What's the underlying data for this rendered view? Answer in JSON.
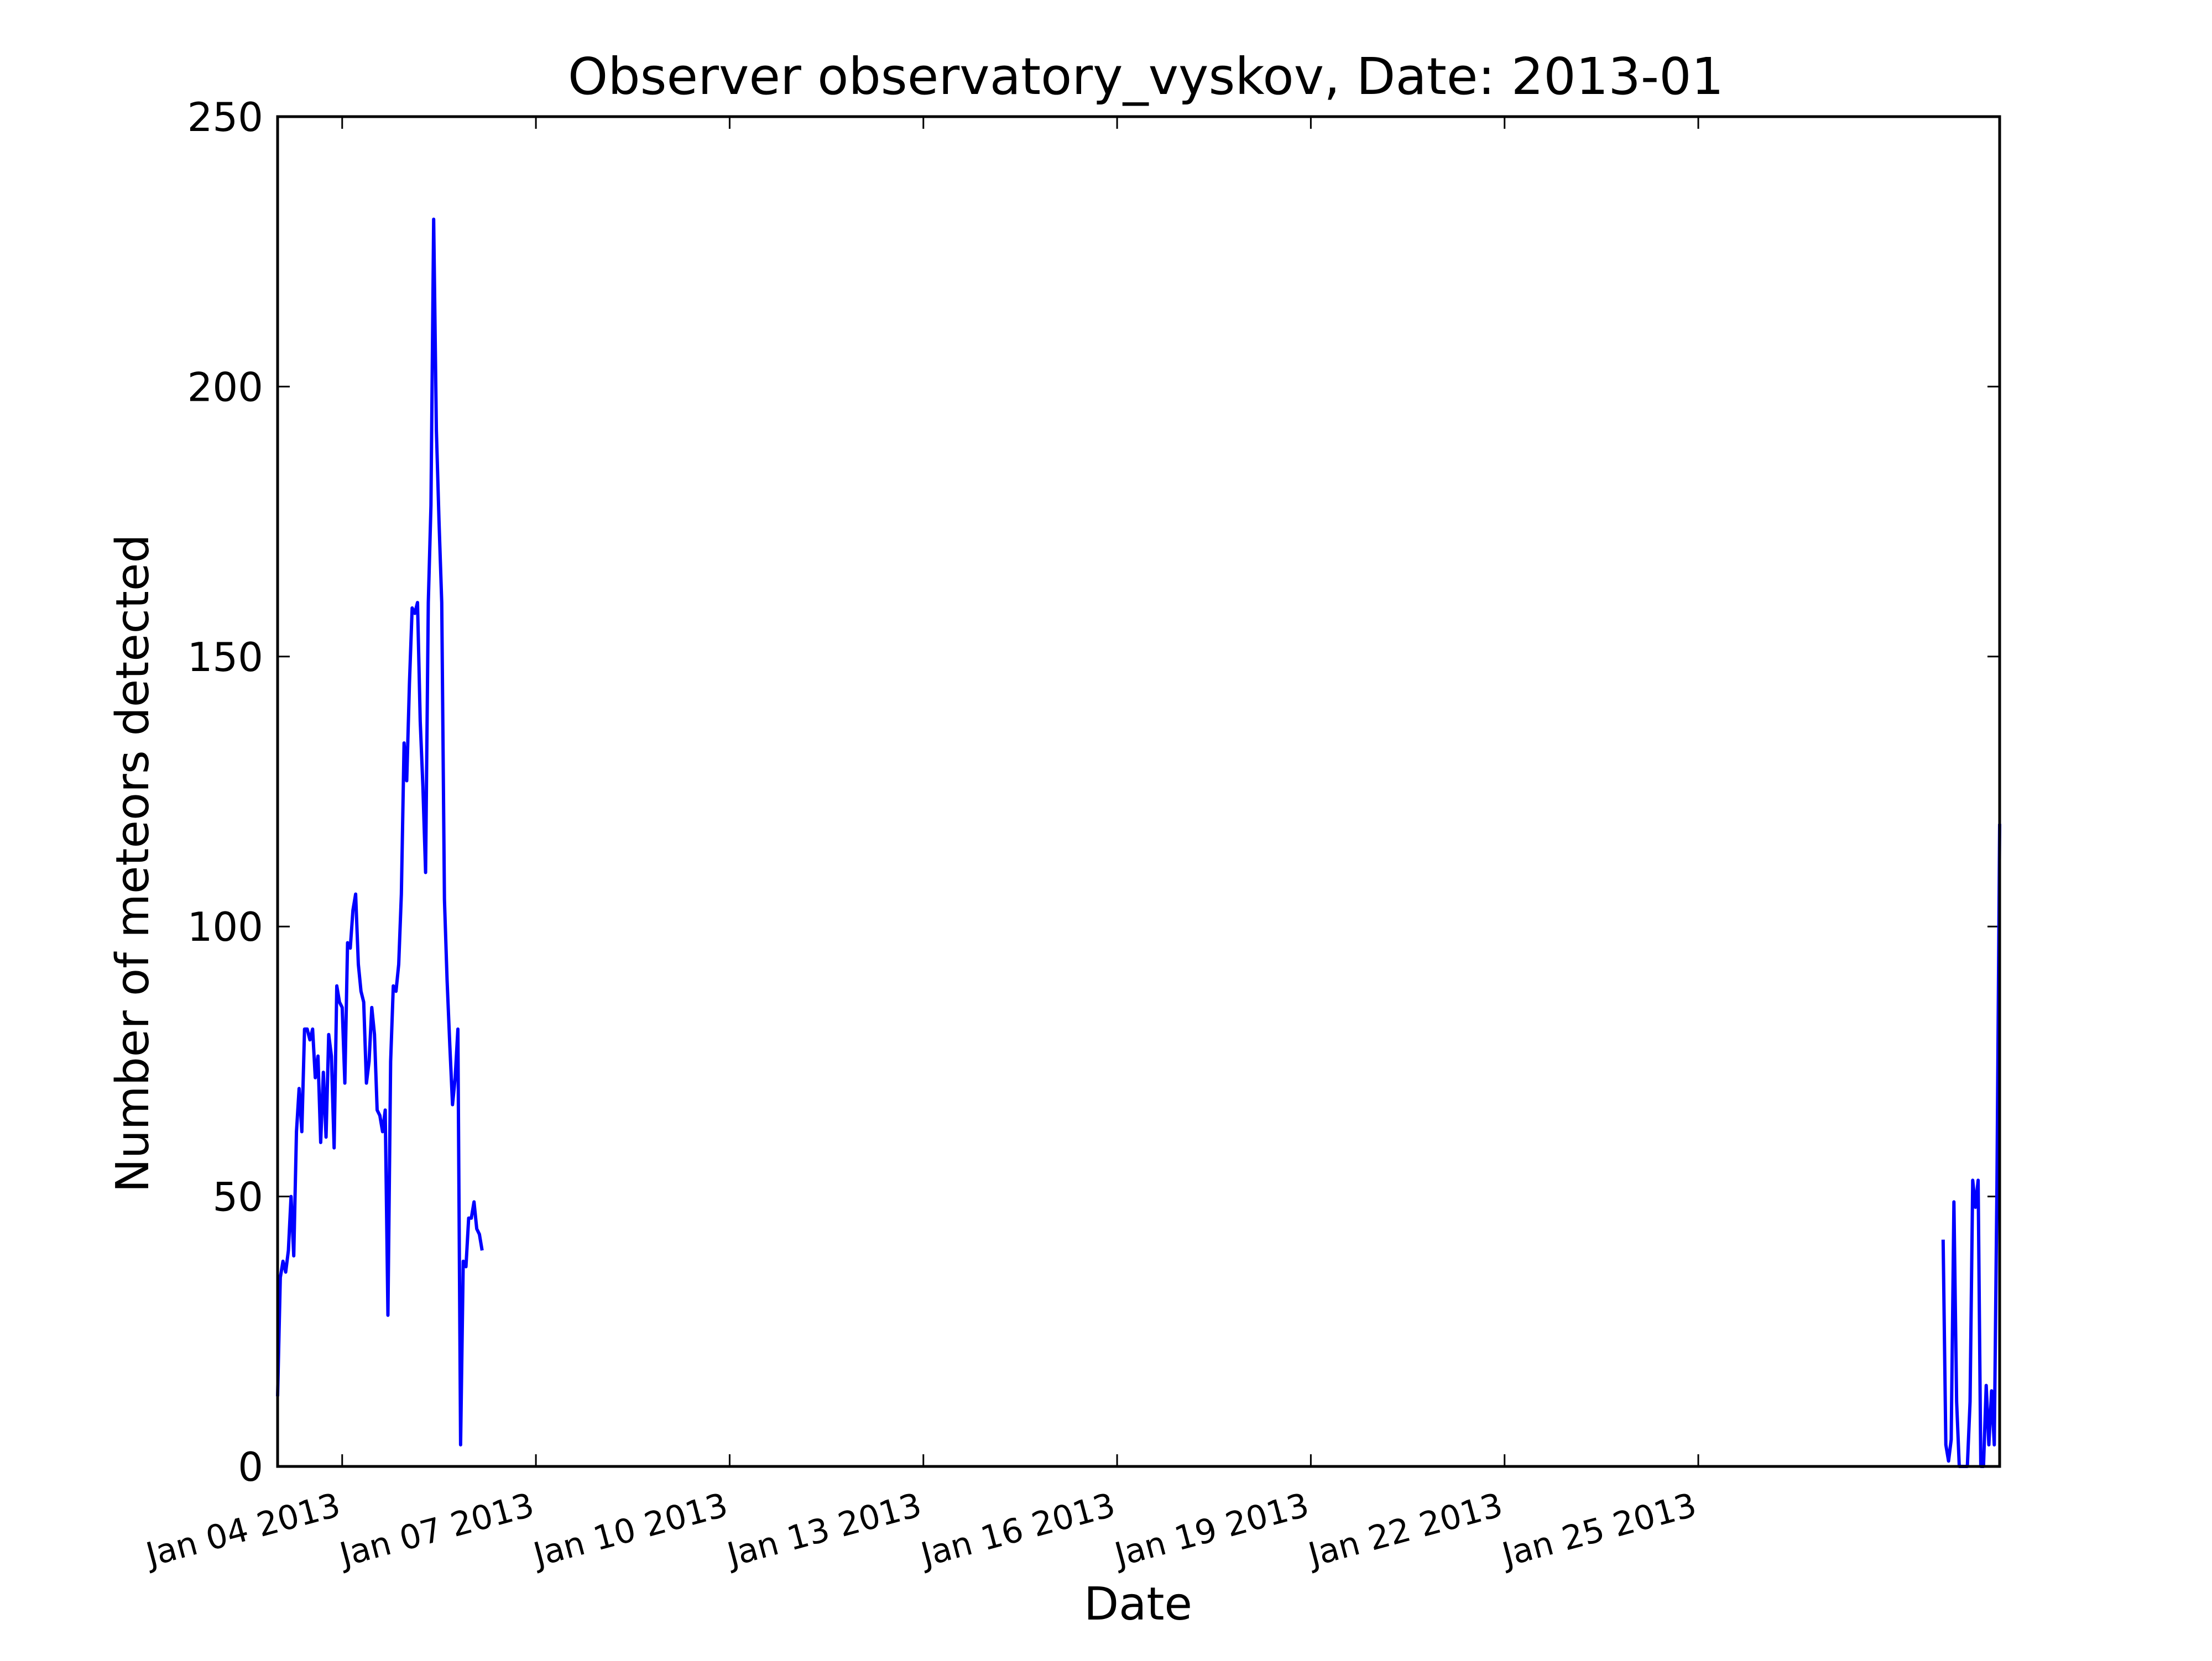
{
  "chart_data": {
    "type": "line",
    "title": "Observer observatory_vyskov, Date: 2013-01",
    "xlabel": "Date",
    "ylabel": "Number of meteors detected",
    "ylim": [
      0,
      250
    ],
    "xlim": [
      "2013-01-03T00:00",
      "2013-01-29T16:00"
    ],
    "yticks": [
      0,
      50,
      100,
      150,
      200,
      250
    ],
    "ytick_labels": [
      "0",
      "50",
      "100",
      "150",
      "200",
      "250"
    ],
    "xticks": [
      "2013-01-04T00:00",
      "2013-01-07T00:00",
      "2013-01-10T00:00",
      "2013-01-13T00:00",
      "2013-01-16T00:00",
      "2013-01-19T00:00",
      "2013-01-22T00:00",
      "2013-01-25T00:00"
    ],
    "xtick_labels": [
      "Jan 04 2013",
      "Jan 07 2013",
      "Jan 10 2013",
      "Jan 13 2013",
      "Jan 16 2013",
      "Jan 19 2013",
      "Jan 22 2013",
      "Jan 25 2013"
    ],
    "grid": false,
    "line_color": "#0000ff",
    "series": [
      {
        "segments": [
          [
            [
              "2013-01-03T00:00",
              13
            ],
            [
              "2013-01-03T01:00",
              35
            ],
            [
              "2013-01-03T02:00",
              38
            ],
            [
              "2013-01-03T03:00",
              36
            ],
            [
              "2013-01-03T04:00",
              40
            ],
            [
              "2013-01-03T05:00",
              50
            ],
            [
              "2013-01-03T06:00",
              39
            ],
            [
              "2013-01-03T07:00",
              62
            ],
            [
              "2013-01-03T08:00",
              70
            ],
            [
              "2013-01-03T09:00",
              62
            ],
            [
              "2013-01-03T10:00",
              81
            ],
            [
              "2013-01-03T11:00",
              81
            ],
            [
              "2013-01-03T12:00",
              79
            ],
            [
              "2013-01-03T13:00",
              81
            ],
            [
              "2013-01-03T14:00",
              72
            ],
            [
              "2013-01-03T15:00",
              76
            ],
            [
              "2013-01-03T16:00",
              60
            ],
            [
              "2013-01-03T17:00",
              73
            ],
            [
              "2013-01-03T18:00",
              61
            ],
            [
              "2013-01-03T19:00",
              80
            ],
            [
              "2013-01-03T20:00",
              76
            ],
            [
              "2013-01-03T21:00",
              59
            ],
            [
              "2013-01-03T22:00",
              89
            ],
            [
              "2013-01-03T23:00",
              86
            ],
            [
              "2013-01-04T00:00",
              85
            ],
            [
              "2013-01-04T01:00",
              71
            ],
            [
              "2013-01-04T02:00",
              97
            ],
            [
              "2013-01-04T03:00",
              96
            ],
            [
              "2013-01-04T04:00",
              103
            ],
            [
              "2013-01-04T05:00",
              106
            ],
            [
              "2013-01-04T06:00",
              93
            ],
            [
              "2013-01-04T07:00",
              88
            ],
            [
              "2013-01-04T08:00",
              86
            ],
            [
              "2013-01-04T09:00",
              71
            ],
            [
              "2013-01-04T10:00",
              75
            ],
            [
              "2013-01-04T11:00",
              85
            ],
            [
              "2013-01-04T12:00",
              80
            ],
            [
              "2013-01-04T13:00",
              66
            ],
            [
              "2013-01-04T14:00",
              65
            ],
            [
              "2013-01-04T15:00",
              62
            ],
            [
              "2013-01-04T16:00",
              66
            ],
            [
              "2013-01-04T17:00",
              28
            ],
            [
              "2013-01-04T18:00",
              75
            ],
            [
              "2013-01-04T19:00",
              89
            ],
            [
              "2013-01-04T20:00",
              88
            ],
            [
              "2013-01-04T21:00",
              93
            ],
            [
              "2013-01-04T22:00",
              106
            ],
            [
              "2013-01-04T23:00",
              134
            ],
            [
              "2013-01-05T00:00",
              127
            ],
            [
              "2013-01-05T01:00",
              145
            ],
            [
              "2013-01-05T02:00",
              159
            ],
            [
              "2013-01-05T03:00",
              158
            ],
            [
              "2013-01-05T04:00",
              160
            ],
            [
              "2013-01-05T05:00",
              138
            ],
            [
              "2013-01-05T06:00",
              126
            ],
            [
              "2013-01-05T07:00",
              110
            ],
            [
              "2013-01-05T08:00",
              160
            ],
            [
              "2013-01-05T09:00",
              178
            ],
            [
              "2013-01-05T10:00",
              231
            ],
            [
              "2013-01-05T11:00",
              192
            ],
            [
              "2013-01-05T12:00",
              175
            ],
            [
              "2013-01-05T13:00",
              160
            ],
            [
              "2013-01-05T14:00",
              105
            ],
            [
              "2013-01-05T15:00",
              90
            ],
            [
              "2013-01-05T16:00",
              78
            ],
            [
              "2013-01-05T17:00",
              67
            ],
            [
              "2013-01-05T18:00",
              72
            ],
            [
              "2013-01-05T19:00",
              81
            ],
            [
              "2013-01-05T20:00",
              4
            ],
            [
              "2013-01-05T21:00",
              38
            ],
            [
              "2013-01-05T22:00",
              37
            ],
            [
              "2013-01-05T23:00",
              46
            ],
            [
              "2013-01-06T00:00",
              46
            ],
            [
              "2013-01-06T01:00",
              49
            ],
            [
              "2013-01-06T02:00",
              44
            ],
            [
              "2013-01-06T03:00",
              43
            ],
            [
              "2013-01-06T04:00",
              40
            ]
          ],
          [
            [
              "2013-01-28T19:00",
              42
            ],
            [
              "2013-01-28T20:00",
              4
            ],
            [
              "2013-01-28T21:00",
              1
            ],
            [
              "2013-01-28T22:00",
              5
            ],
            [
              "2013-01-28T23:00",
              49
            ],
            [
              "2013-01-29T00:00",
              12
            ],
            [
              "2013-01-29T01:00",
              0
            ],
            [
              "2013-01-29T02:00",
              0
            ],
            [
              "2013-01-29T03:00",
              0
            ],
            [
              "2013-01-29T04:00",
              0
            ],
            [
              "2013-01-29T05:00",
              12
            ],
            [
              "2013-01-29T06:00",
              53
            ],
            [
              "2013-01-29T07:00",
              48
            ],
            [
              "2013-01-29T08:00",
              53
            ],
            [
              "2013-01-29T09:00",
              0
            ],
            [
              "2013-01-29T10:00",
              0
            ],
            [
              "2013-01-29T11:00",
              15
            ],
            [
              "2013-01-29T12:00",
              4
            ],
            [
              "2013-01-29T13:00",
              14
            ],
            [
              "2013-01-29T14:00",
              4
            ],
            [
              "2013-01-29T15:00",
              52
            ],
            [
              "2013-01-29T16:00",
              119
            ]
          ]
        ]
      }
    ]
  }
}
